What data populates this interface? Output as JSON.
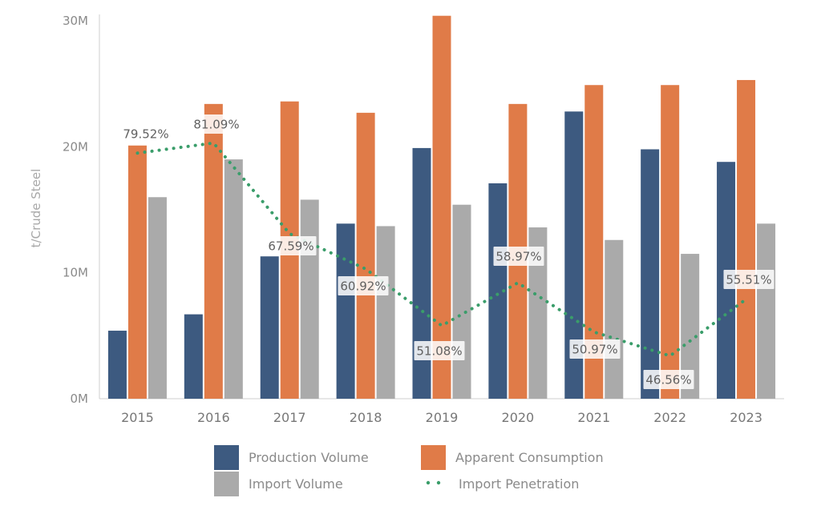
{
  "chart_data": {
    "type": "bar",
    "ylabel": "t/Crude Steel",
    "ylim": [
      0,
      30000000
    ],
    "yticks": [
      "0M",
      "10M",
      "20M",
      "30M"
    ],
    "categories": [
      "2015",
      "2016",
      "2017",
      "2018",
      "2019",
      "2020",
      "2021",
      "2022",
      "2023"
    ],
    "series": [
      {
        "name": "Production Volume",
        "type": "bar",
        "color": "#3d5a80",
        "values": [
          5400000,
          6700000,
          11300000,
          13900000,
          19900000,
          17100000,
          22800000,
          19800000,
          18800000
        ]
      },
      {
        "name": "Apparent Consumption",
        "type": "bar",
        "color": "#e07b48",
        "values": [
          20100000,
          23400000,
          23600000,
          22700000,
          30400000,
          23400000,
          24900000,
          24900000,
          25300000
        ]
      },
      {
        "name": "Import Volume",
        "type": "bar",
        "color": "#aaaaaa",
        "values": [
          16000000,
          19000000,
          15800000,
          13700000,
          15400000,
          13600000,
          12600000,
          11500000,
          13900000
        ]
      },
      {
        "name": "Import Penetration",
        "type": "line",
        "style": "dotted",
        "color": "#3a9d6a",
        "values": [
          79.52,
          81.09,
          67.59,
          60.92,
          51.08,
          58.97,
          50.97,
          46.56,
          55.51
        ],
        "labels": [
          "79.52%",
          "81.09%",
          "67.59%",
          "60.92%",
          "51.08%",
          "58.97%",
          "50.97%",
          "46.56%",
          "55.51%"
        ],
        "plotted_on_scale_m": [
          19.5,
          20.3,
          13.1,
          10.3,
          5.8,
          9.2,
          5.3,
          3.4,
          7.9
        ]
      }
    ],
    "legend_position": "bottom",
    "grid": false
  }
}
